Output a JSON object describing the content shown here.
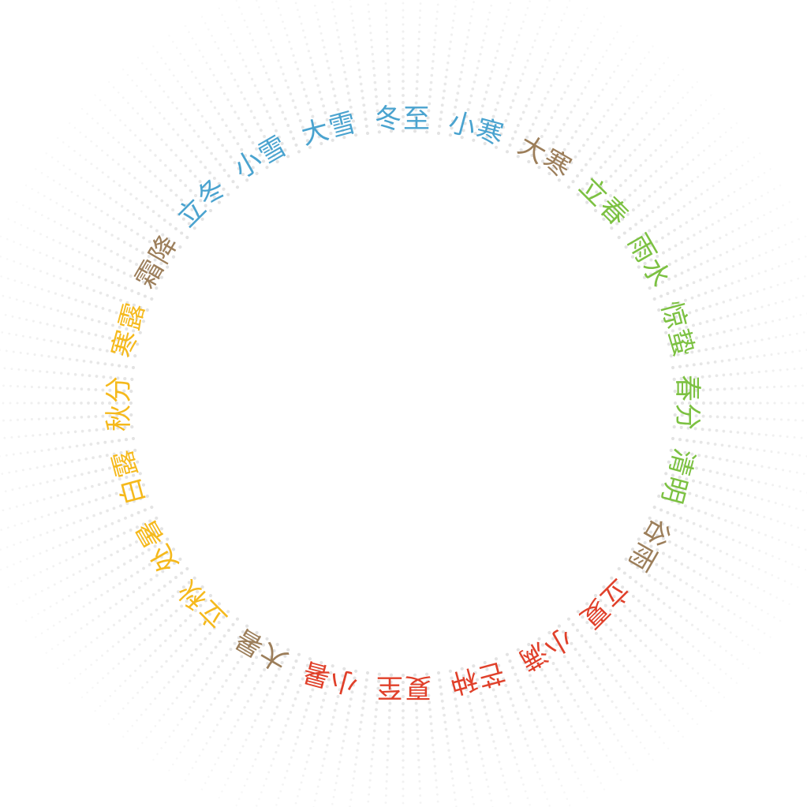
{
  "palette": {
    "winter": "#4aa3cf",
    "spring": "#7cc142",
    "summer": "#e0402a",
    "autumn": "#f5b91c",
    "transition": "#9c7e5a",
    "dot": "#d9d9d9"
  },
  "terms": [
    {
      "name": "冬至",
      "season": "winter"
    },
    {
      "name": "小寒",
      "season": "winter"
    },
    {
      "name": "大寒",
      "season": "transition"
    },
    {
      "name": "立春",
      "season": "spring"
    },
    {
      "name": "雨水",
      "season": "spring"
    },
    {
      "name": "惊蛰",
      "season": "spring"
    },
    {
      "name": "春分",
      "season": "spring"
    },
    {
      "name": "清明",
      "season": "spring"
    },
    {
      "name": "谷雨",
      "season": "transition"
    },
    {
      "name": "立夏",
      "season": "summer"
    },
    {
      "name": "小满",
      "season": "summer"
    },
    {
      "name": "芒种",
      "season": "summer"
    },
    {
      "name": "夏至",
      "season": "summer"
    },
    {
      "name": "小暑",
      "season": "summer"
    },
    {
      "name": "大暑",
      "season": "transition"
    },
    {
      "name": "立秋",
      "season": "autumn"
    },
    {
      "name": "处暑",
      "season": "autumn"
    },
    {
      "name": "白露",
      "season": "autumn"
    },
    {
      "name": "秋分",
      "season": "autumn"
    },
    {
      "name": "寒露",
      "season": "autumn"
    },
    {
      "name": "霜降",
      "season": "transition"
    },
    {
      "name": "立冬",
      "season": "winter"
    },
    {
      "name": "小雪",
      "season": "winter"
    },
    {
      "name": "大雪",
      "season": "winter"
    }
  ]
}
